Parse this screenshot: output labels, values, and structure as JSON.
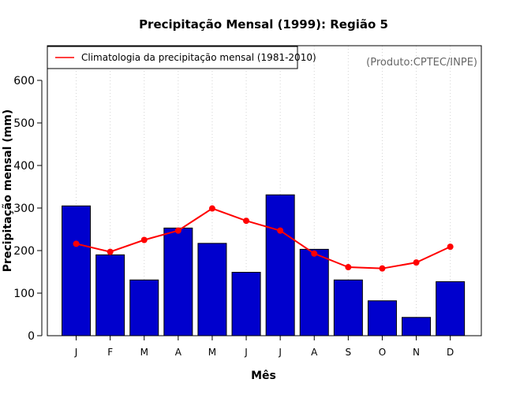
{
  "chart_data": {
    "type": "bar",
    "title": "Precipitação Mensal (1999): Região 5",
    "xlabel": "Mês",
    "ylabel": "Precipitação mensal (mm)",
    "categories": [
      "J",
      "F",
      "M",
      "A",
      "M",
      "J",
      "J",
      "A",
      "S",
      "O",
      "N",
      "D"
    ],
    "ylim": [
      0,
      600
    ],
    "yticks": [
      0,
      100,
      200,
      300,
      400,
      500,
      600
    ],
    "grid": "vertical-dotted",
    "series": [
      {
        "name": "Precipitação mensal (1999)",
        "type": "bar",
        "color": "#0000cd",
        "values": [
          305,
          190,
          131,
          253,
          217,
          149,
          331,
          203,
          131,
          82,
          43,
          127
        ]
      },
      {
        "name": "Climatologia da precipitação mensal (1981-2010)",
        "type": "line",
        "color": "#ff0000",
        "values": [
          216,
          197,
          225,
          247,
          299,
          270,
          247,
          193,
          161,
          158,
          172,
          209
        ]
      }
    ],
    "legend": {
      "position": "top-left",
      "entries": [
        "Climatologia da precipitação mensal (1981-2010)"
      ]
    },
    "annotation": "(Produto:CPTEC/INPE)"
  }
}
